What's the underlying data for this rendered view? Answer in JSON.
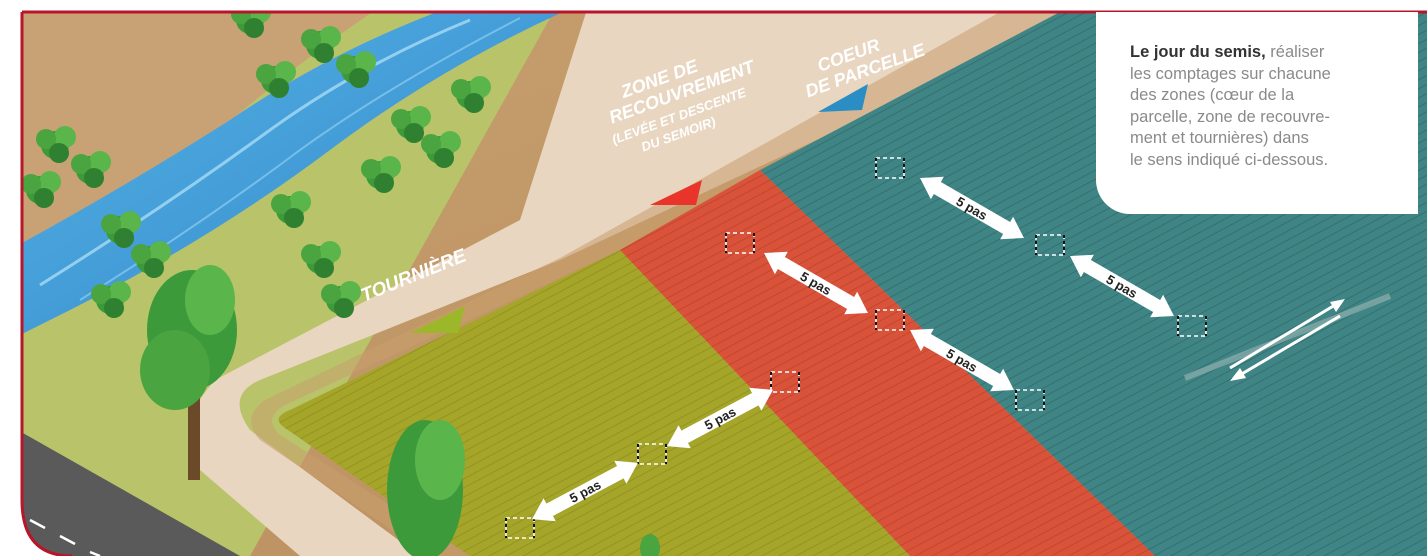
{
  "labels": {
    "coeur_line1": "COEUR",
    "coeur_line2": "DE PARCELLE",
    "recouvrement_line1": "ZONE DE",
    "recouvrement_line2": "RECOUVREMENT",
    "recouvrement_line3": "(LEVÉE ET DESCENTE",
    "recouvrement_line4": "DU SEMOIR)",
    "tourniere": "TOURNIÈRE"
  },
  "distance_label": "5 pas",
  "info": {
    "lead": "Le jour du semis,",
    "lines": [
      " réaliser",
      "les comptages sur chacune",
      "des zones (cœur de la",
      "parcelle, zone de recouvre-",
      "ment et tournières) dans",
      "le sens indiqué ci-dessous."
    ]
  },
  "colors": {
    "border": "#b7162a",
    "teal": "#3f8585",
    "red": "#d9533a",
    "green": "#a5a52a",
    "path": "#e8d6c0",
    "soil": "#c49a6a",
    "river": "#3c9bd8",
    "road": "#5a5a5a",
    "marker_teal": "#2a8ec4",
    "marker_red": "#e8342a",
    "marker_green": "#9cb82a"
  }
}
